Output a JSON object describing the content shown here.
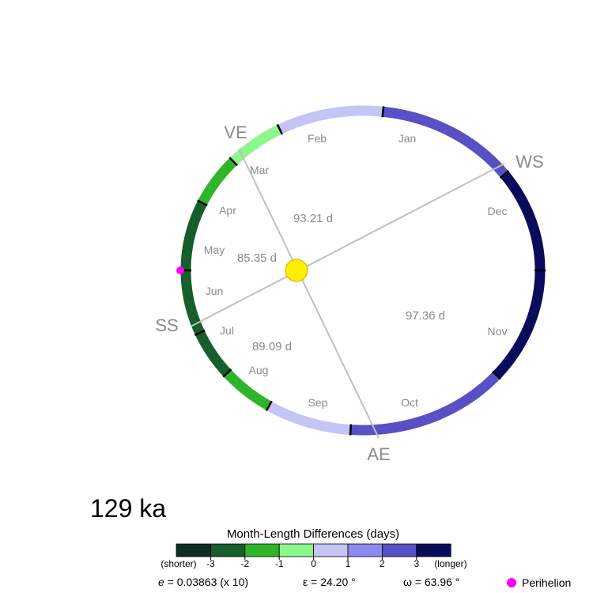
{
  "age_label": "129 ka",
  "seasons": {
    "ve": "VE",
    "ss": "SS",
    "ae": "AE",
    "ws": "WS"
  },
  "season_durations": {
    "spring": "85.35 d",
    "summer": "89.09 d",
    "autumn": "97.36 d",
    "winter": "93.21 d"
  },
  "months": [
    {
      "name": "Jan",
      "diff": 2.3
    },
    {
      "name": "Feb",
      "diff": 0.5
    },
    {
      "name": "Mar",
      "diff": -0.9
    },
    {
      "name": "Apr",
      "diff": -1.8
    },
    {
      "name": "May",
      "diff": -2.6
    },
    {
      "name": "Jun",
      "diff": -2.8
    },
    {
      "name": "Jul",
      "diff": -2.5
    },
    {
      "name": "Aug",
      "diff": -1.6
    },
    {
      "name": "Sep",
      "diff": 0.3
    },
    {
      "name": "Oct",
      "diff": 2.2
    },
    {
      "name": "Nov",
      "diff": 3.4
    },
    {
      "name": "Dec",
      "diff": 3.5
    }
  ],
  "sun_color": "#ffee00",
  "perihelion_color": "#ff00ff",
  "colorbar": {
    "title": "Month-Length Differences (days)",
    "colors": [
      "#0d2f22",
      "#165e2c",
      "#2fb52a",
      "#8cf78a",
      "#c4c4f5",
      "#8e89f0",
      "#5850c4",
      "#0b0b5c"
    ],
    "ticks": [
      "-3",
      "-2",
      "-1",
      "0",
      "1",
      "2",
      "3"
    ],
    "left_label": "(shorter)",
    "right_label": "(longer)"
  },
  "params": {
    "e_symbol": "e",
    "e_text": " = 0.03863 (x 10)",
    "epsilon": "ε = 24.20 °",
    "omega": "ω = 63.96 °"
  },
  "legend": {
    "perihelion": "Perihelion"
  }
}
